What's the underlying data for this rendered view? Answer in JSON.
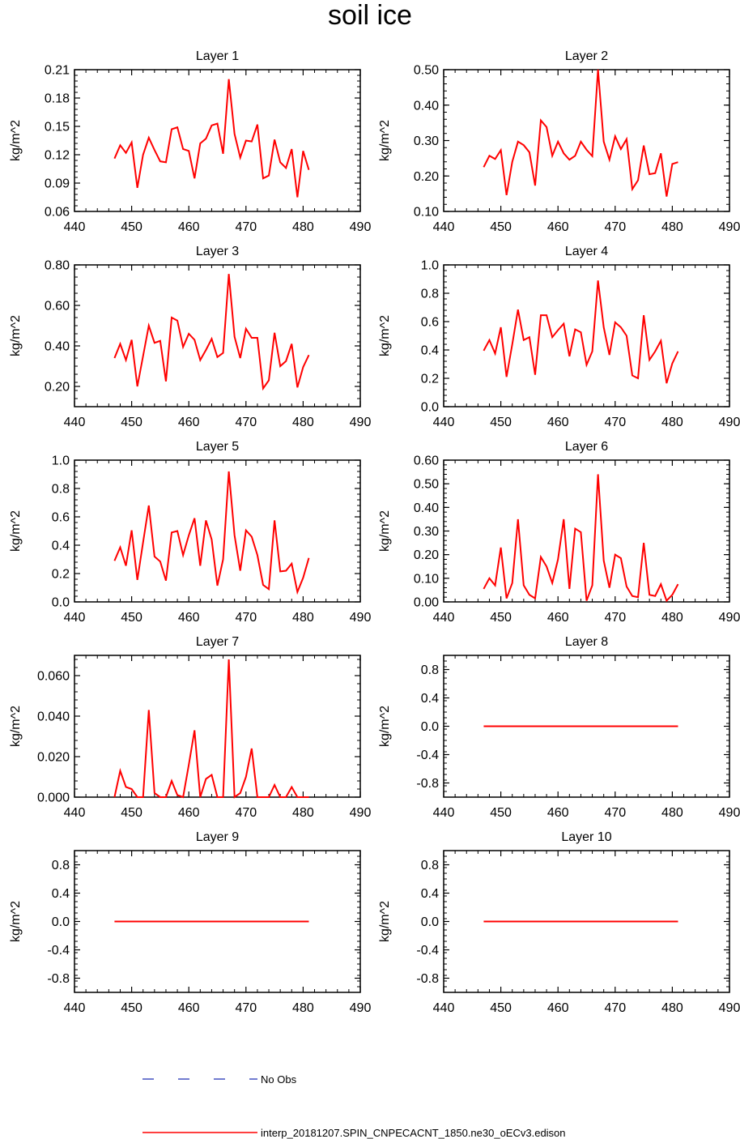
{
  "figure": {
    "title": "soil ice",
    "legend": [
      {
        "label": "No Obs",
        "color": "#1f2fb3",
        "style": "dashed"
      },
      {
        "label": "interp_20181207.SPIN_CNPECACNT_1850.ne30_oECv3.edison",
        "color": "#ff0000",
        "style": "solid"
      }
    ]
  },
  "chart_data": [
    {
      "type": "line",
      "title": "Layer 1",
      "ylabel": "kg/m^2",
      "xlim": [
        440,
        490
      ],
      "xticks": [
        "440",
        "450",
        "460",
        "470",
        "480",
        "490"
      ],
      "ylim": [
        0.06,
        0.21
      ],
      "yticks": [
        "0.06",
        "0.09",
        "0.12",
        "0.15",
        "0.18",
        "0.21"
      ],
      "x_start": 447,
      "values": [
        0.116,
        0.13,
        0.122,
        0.133,
        0.085,
        0.12,
        0.138,
        0.125,
        0.113,
        0.112,
        0.147,
        0.149,
        0.126,
        0.124,
        0.095,
        0.132,
        0.137,
        0.151,
        0.153,
        0.121,
        0.2,
        0.142,
        0.117,
        0.135,
        0.134,
        0.152,
        0.095,
        0.098,
        0.136,
        0.112,
        0.106,
        0.126,
        0.075,
        0.124,
        0.104
      ],
      "series_color": "#ff0000"
    },
    {
      "type": "line",
      "title": "Layer 2",
      "ylabel": "kg/m^2",
      "xlim": [
        440,
        490
      ],
      "xticks": [
        "440",
        "450",
        "460",
        "470",
        "480",
        "490"
      ],
      "ylim": [
        0.1,
        0.5
      ],
      "yticks": [
        "0.10",
        "0.20",
        "0.30",
        "0.40",
        "0.50"
      ],
      "x_start": 447,
      "values": [
        0.225,
        0.257,
        0.248,
        0.273,
        0.146,
        0.24,
        0.297,
        0.287,
        0.267,
        0.173,
        0.357,
        0.338,
        0.257,
        0.297,
        0.264,
        0.246,
        0.257,
        0.297,
        0.274,
        0.256,
        0.5,
        0.297,
        0.246,
        0.312,
        0.276,
        0.304,
        0.163,
        0.188,
        0.286,
        0.205,
        0.208,
        0.264,
        0.142,
        0.234,
        0.239
      ],
      "series_color": "#ff0000"
    },
    {
      "type": "line",
      "title": "Layer 3",
      "ylabel": "kg/m^2",
      "xlim": [
        440,
        490
      ],
      "xticks": [
        "440",
        "450",
        "460",
        "470",
        "480",
        "490"
      ],
      "ylim": [
        0.1,
        0.8
      ],
      "yticks": [
        "0.20",
        "0.40",
        "0.60",
        "0.80"
      ],
      "x_start": 447,
      "values": [
        0.34,
        0.41,
        0.33,
        0.43,
        0.2,
        0.35,
        0.5,
        0.415,
        0.425,
        0.225,
        0.54,
        0.525,
        0.395,
        0.46,
        0.43,
        0.33,
        0.38,
        0.435,
        0.345,
        0.365,
        0.755,
        0.445,
        0.34,
        0.485,
        0.44,
        0.44,
        0.19,
        0.23,
        0.465,
        0.3,
        0.325,
        0.41,
        0.195,
        0.295,
        0.355
      ],
      "series_color": "#ff0000"
    },
    {
      "type": "line",
      "title": "Layer 4",
      "ylabel": "kg/m^2",
      "xlim": [
        440,
        490
      ],
      "xticks": [
        "440",
        "450",
        "460",
        "470",
        "480",
        "490"
      ],
      "ylim": [
        0.0,
        1.0
      ],
      "yticks": [
        "0.0",
        "0.2",
        "0.4",
        "0.6",
        "0.8",
        "1.0"
      ],
      "x_start": 447,
      "values": [
        0.395,
        0.47,
        0.375,
        0.56,
        0.21,
        0.44,
        0.685,
        0.47,
        0.49,
        0.225,
        0.645,
        0.645,
        0.49,
        0.54,
        0.585,
        0.355,
        0.545,
        0.525,
        0.295,
        0.39,
        0.89,
        0.56,
        0.365,
        0.595,
        0.56,
        0.5,
        0.22,
        0.2,
        0.645,
        0.33,
        0.39,
        0.465,
        0.165,
        0.305,
        0.39
      ],
      "series_color": "#ff0000"
    },
    {
      "type": "line",
      "title": "Layer 5",
      "ylabel": "kg/m^2",
      "xlim": [
        440,
        490
      ],
      "xticks": [
        "440",
        "450",
        "460",
        "470",
        "480",
        "490"
      ],
      "ylim": [
        0.0,
        1.0
      ],
      "yticks": [
        "0.0",
        "0.2",
        "0.4",
        "0.6",
        "0.8",
        "1.0"
      ],
      "x_start": 447,
      "values": [
        0.29,
        0.385,
        0.255,
        0.505,
        0.155,
        0.42,
        0.68,
        0.32,
        0.285,
        0.15,
        0.49,
        0.5,
        0.33,
        0.47,
        0.59,
        0.255,
        0.575,
        0.44,
        0.115,
        0.3,
        0.92,
        0.47,
        0.22,
        0.505,
        0.46,
        0.33,
        0.12,
        0.09,
        0.575,
        0.215,
        0.22,
        0.27,
        0.07,
        0.17,
        0.31
      ],
      "series_color": "#ff0000"
    },
    {
      "type": "line",
      "title": "Layer 6",
      "ylabel": "kg/m^2",
      "xlim": [
        440,
        490
      ],
      "xticks": [
        "440",
        "450",
        "460",
        "470",
        "480",
        "490"
      ],
      "ylim": [
        0.0,
        0.6
      ],
      "yticks": [
        "0.00",
        "0.10",
        "0.20",
        "0.30",
        "0.40",
        "0.50",
        "0.60"
      ],
      "x_start": 447,
      "values": [
        0.055,
        0.1,
        0.07,
        0.23,
        0.015,
        0.08,
        0.35,
        0.07,
        0.03,
        0.015,
        0.19,
        0.15,
        0.08,
        0.18,
        0.35,
        0.055,
        0.31,
        0.295,
        0.005,
        0.07,
        0.54,
        0.175,
        0.06,
        0.2,
        0.185,
        0.065,
        0.025,
        0.02,
        0.25,
        0.03,
        0.025,
        0.075,
        0.005,
        0.03,
        0.075
      ],
      "series_color": "#ff0000"
    },
    {
      "type": "line",
      "title": "Layer 7",
      "ylabel": "kg/m^2",
      "xlim": [
        440,
        490
      ],
      "xticks": [
        "440",
        "450",
        "460",
        "470",
        "480",
        "490"
      ],
      "ylim": [
        0.0,
        0.07
      ],
      "yticks": [
        "0.000",
        "0.020",
        "0.040",
        "0.060"
      ],
      "x_start": 447,
      "values": [
        0.0,
        0.013,
        0.005,
        0.004,
        0.0,
        0.0,
        0.043,
        0.002,
        0.0,
        0.0,
        0.008,
        0.001,
        0.0,
        0.016,
        0.033,
        0.0,
        0.009,
        0.011,
        0.0,
        0.0,
        0.068,
        0.0,
        0.002,
        0.01,
        0.024,
        0.0,
        0.0,
        0.0,
        0.006,
        0.0,
        0.0,
        0.005,
        0.0,
        0.0,
        0.0
      ],
      "series_color": "#ff0000"
    },
    {
      "type": "line",
      "title": "Layer 8",
      "ylabel": "kg/m^2",
      "xlim": [
        440,
        490
      ],
      "xticks": [
        "440",
        "450",
        "460",
        "470",
        "480",
        "490"
      ],
      "ylim": [
        -1.0,
        1.0
      ],
      "yticks": [
        "-0.8",
        "-0.4",
        "0.0",
        "0.4",
        "0.8"
      ],
      "x_start": 447,
      "x_end": 481,
      "constant": 0.0,
      "series_color": "#ff0000"
    },
    {
      "type": "line",
      "title": "Layer 9",
      "ylabel": "kg/m^2",
      "xlim": [
        440,
        490
      ],
      "xticks": [
        "440",
        "450",
        "460",
        "470",
        "480",
        "490"
      ],
      "ylim": [
        -1.0,
        1.0
      ],
      "yticks": [
        "-0.8",
        "-0.4",
        "0.0",
        "0.4",
        "0.8"
      ],
      "x_start": 447,
      "x_end": 481,
      "constant": 0.0,
      "series_color": "#ff0000"
    },
    {
      "type": "line",
      "title": "Layer 10",
      "ylabel": "kg/m^2",
      "xlim": [
        440,
        490
      ],
      "xticks": [
        "440",
        "450",
        "460",
        "470",
        "480",
        "490"
      ],
      "ylim": [
        -1.0,
        1.0
      ],
      "yticks": [
        "-0.8",
        "-0.4",
        "0.0",
        "0.4",
        "0.8"
      ],
      "x_start": 447,
      "x_end": 481,
      "constant": 0.0,
      "series_color": "#ff0000"
    }
  ]
}
